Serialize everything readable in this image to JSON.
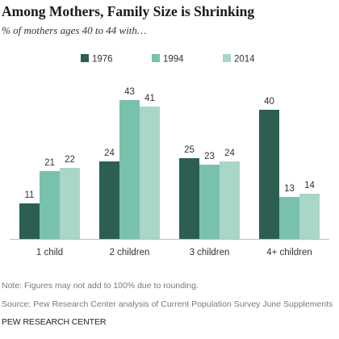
{
  "title": "Among Mothers, Family Size is Shrinking",
  "subtitle": "% of mothers ages 40 to 44 with…",
  "chart_data": {
    "type": "bar",
    "categories": [
      "1 child",
      "2 children",
      "3 children",
      "4+ children"
    ],
    "series": [
      {
        "name": "1976",
        "color": "#2c5f52",
        "values": [
          11,
          24,
          25,
          40
        ]
      },
      {
        "name": "1994",
        "color": "#79c1ad",
        "values": [
          21,
          43,
          23,
          13
        ]
      },
      {
        "name": "2014",
        "color": "#a8d6c8",
        "values": [
          22,
          41,
          24,
          14
        ]
      }
    ],
    "ylim": [
      0,
      45
    ],
    "legend_position": "top",
    "grid": false,
    "data_labels": true
  },
  "footer": {
    "note": "Note: Figures may not add to 100% due to rounding.",
    "source": "Source: Pew Research Center analysis of Current Population Survey June Supplements",
    "org": "PEW RESEARCH CENTER"
  }
}
